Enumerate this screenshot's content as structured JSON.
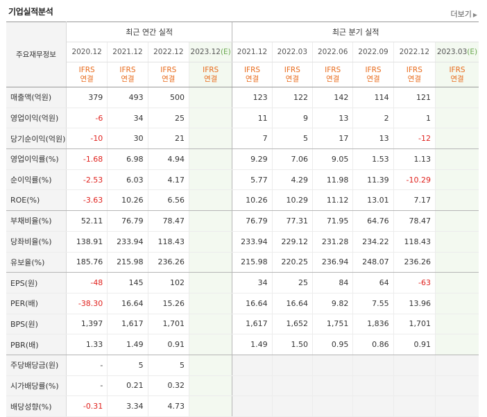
{
  "section_title": "기업실적분석",
  "more_label": "더보기",
  "header": {
    "row_label": "주요재무정보",
    "annual_group": "최근 연간 실적",
    "quarter_group": "최근 분기 실적",
    "annual_periods": [
      "2020.12",
      "2021.12",
      "2022.12",
      "2023.12"
    ],
    "annual_est_mark": "(E)",
    "quarter_periods": [
      "2021.12",
      "2022.03",
      "2022.06",
      "2022.09",
      "2022.12",
      "2023.03"
    ],
    "quarter_est_mark": "(E)",
    "ifrs_line1": "IFRS",
    "ifrs_line2": "연결"
  },
  "rows": [
    {
      "label": "매출액(억원)",
      "annual": [
        "379",
        "493",
        "500",
        ""
      ],
      "quarter": [
        "123",
        "122",
        "142",
        "114",
        "121",
        ""
      ]
    },
    {
      "label": "영업이익(억원)",
      "annual": [
        "-6",
        "34",
        "25",
        ""
      ],
      "quarter": [
        "11",
        "9",
        "13",
        "2",
        "1",
        ""
      ]
    },
    {
      "label": "당기순이익(억원)",
      "annual": [
        "-10",
        "30",
        "21",
        ""
      ],
      "quarter": [
        "7",
        "5",
        "17",
        "13",
        "-12",
        ""
      ]
    },
    {
      "label": "영업이익률(%)",
      "annual": [
        "-1.68",
        "6.98",
        "4.94",
        ""
      ],
      "quarter": [
        "9.29",
        "7.06",
        "9.05",
        "1.53",
        "1.13",
        ""
      ]
    },
    {
      "label": "순이익률(%)",
      "annual": [
        "-2.53",
        "6.03",
        "4.17",
        ""
      ],
      "quarter": [
        "5.77",
        "4.29",
        "11.98",
        "11.39",
        "-10.29",
        ""
      ]
    },
    {
      "label": "ROE(%)",
      "annual": [
        "-3.63",
        "10.26",
        "6.56",
        ""
      ],
      "quarter": [
        "10.26",
        "10.29",
        "11.12",
        "13.01",
        "7.17",
        ""
      ]
    },
    {
      "label": "부채비율(%)",
      "annual": [
        "52.11",
        "76.79",
        "78.47",
        ""
      ],
      "quarter": [
        "76.79",
        "77.31",
        "71.95",
        "64.76",
        "78.47",
        ""
      ]
    },
    {
      "label": "당좌비율(%)",
      "annual": [
        "138.91",
        "233.94",
        "118.43",
        ""
      ],
      "quarter": [
        "233.94",
        "229.12",
        "231.28",
        "234.22",
        "118.43",
        ""
      ]
    },
    {
      "label": "유보율(%)",
      "annual": [
        "185.76",
        "215.98",
        "236.26",
        ""
      ],
      "quarter": [
        "215.98",
        "220.25",
        "236.94",
        "248.07",
        "236.26",
        ""
      ]
    },
    {
      "label": "EPS(원)",
      "annual": [
        "-48",
        "145",
        "102",
        ""
      ],
      "quarter": [
        "34",
        "25",
        "84",
        "64",
        "-63",
        ""
      ]
    },
    {
      "label": "PER(배)",
      "annual": [
        "-38.30",
        "16.64",
        "15.26",
        ""
      ],
      "quarter": [
        "16.64",
        "16.64",
        "9.82",
        "7.55",
        "13.96",
        ""
      ]
    },
    {
      "label": "BPS(원)",
      "annual": [
        "1,397",
        "1,617",
        "1,701",
        ""
      ],
      "quarter": [
        "1,617",
        "1,652",
        "1,751",
        "1,836",
        "1,701",
        ""
      ]
    },
    {
      "label": "PBR(배)",
      "annual": [
        "1.33",
        "1.49",
        "0.91",
        ""
      ],
      "quarter": [
        "1.49",
        "1.50",
        "0.95",
        "0.86",
        "0.91",
        ""
      ]
    },
    {
      "label": "주당배당금(원)",
      "annual": [
        "-",
        "5",
        "5",
        ""
      ],
      "quarter": null
    },
    {
      "label": "시가배당률(%)",
      "annual": [
        "-",
        "0.21",
        "0.32",
        ""
      ],
      "quarter": null
    },
    {
      "label": "배당성향(%)",
      "annual": [
        "-0.31",
        "3.34",
        "4.73",
        ""
      ],
      "quarter": null
    }
  ],
  "group_ends": [
    2,
    5,
    8,
    12
  ],
  "colors": {
    "negative": "#e0211d",
    "ifrs": "#e86a1a",
    "estimate_bg": "#f3f9f0",
    "estimate_mark": "#6aa84f"
  }
}
